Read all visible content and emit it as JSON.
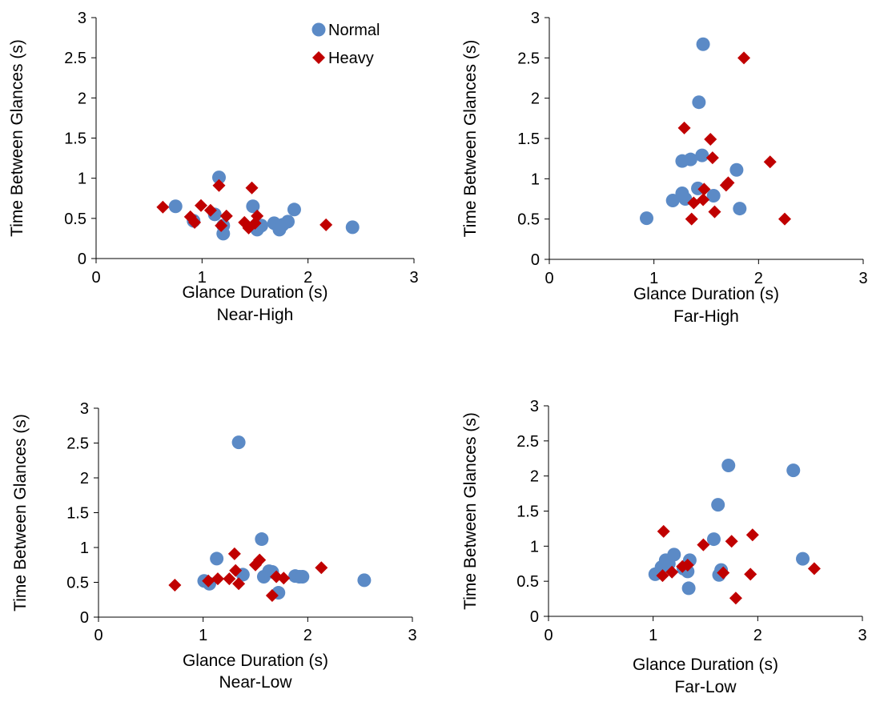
{
  "colors": {
    "normal": "#5b8ac6",
    "heavy": "#c00000",
    "axis": "#000000"
  },
  "chart_data": [
    {
      "type": "scatter",
      "xlabel": "Glance Duration (s)",
      "caption": "Near-High",
      "ylabel": "Time Between Glances (s)",
      "xlim": [
        0,
        3
      ],
      "ylim": [
        0,
        3
      ],
      "xticks": [
        "0",
        "1",
        "2",
        "3"
      ],
      "yticks": [
        "0",
        "0.5",
        "1",
        "1.5",
        "2",
        "2.5",
        "3"
      ],
      "legend": {
        "position": "top-right",
        "entries": [
          "Normal",
          "Heavy"
        ]
      },
      "series": [
        {
          "name": "Normal",
          "marker": "circle",
          "x": [
            0.75,
            0.92,
            1.12,
            1.16,
            1.2,
            1.2,
            1.48,
            1.52,
            1.56,
            1.68,
            1.73,
            1.76,
            1.81,
            1.87,
            2.42
          ],
          "y": [
            0.65,
            0.47,
            0.55,
            1.01,
            0.41,
            0.31,
            0.65,
            0.36,
            0.41,
            0.44,
            0.36,
            0.42,
            0.46,
            0.61,
            0.39
          ]
        },
        {
          "name": "Heavy",
          "marker": "diamond",
          "x": [
            0.63,
            0.89,
            0.93,
            0.99,
            1.08,
            1.16,
            1.18,
            1.23,
            1.4,
            1.44,
            1.47,
            1.5,
            1.52,
            2.17
          ],
          "y": [
            0.64,
            0.52,
            0.45,
            0.66,
            0.6,
            0.91,
            0.41,
            0.53,
            0.45,
            0.38,
            0.88,
            0.44,
            0.53,
            0.42
          ]
        }
      ]
    },
    {
      "type": "scatter",
      "xlabel": "Glance Duration (s)",
      "caption": "Far-High",
      "ylabel": "Time Between Glances (s)",
      "xlim": [
        0,
        3
      ],
      "ylim": [
        0,
        3
      ],
      "xticks": [
        "0",
        "1",
        "2",
        "3"
      ],
      "yticks": [
        "0",
        "0.5",
        "1",
        "1.5",
        "2",
        "2.5",
        "3"
      ],
      "series": [
        {
          "name": "Normal",
          "marker": "circle",
          "x": [
            0.93,
            1.18,
            1.27,
            1.27,
            1.3,
            1.35,
            1.42,
            1.43,
            1.46,
            1.47,
            1.57,
            1.79,
            1.82
          ],
          "y": [
            0.51,
            0.73,
            0.82,
            1.22,
            0.75,
            1.24,
            0.88,
            1.95,
            1.29,
            2.67,
            0.79,
            1.11,
            0.63
          ]
        },
        {
          "name": "Heavy",
          "marker": "diamond",
          "x": [
            1.29,
            1.36,
            1.38,
            1.47,
            1.48,
            1.54,
            1.56,
            1.58,
            1.69,
            1.71,
            1.86,
            2.11,
            2.25
          ],
          "y": [
            1.63,
            0.5,
            0.7,
            0.74,
            0.87,
            1.49,
            1.26,
            0.59,
            0.92,
            0.95,
            2.5,
            1.21,
            0.5
          ]
        }
      ]
    },
    {
      "type": "scatter",
      "xlabel": "Glance Duration (s)",
      "caption": "Near-Low",
      "ylabel": "Time Between Glances (s)",
      "xlim": [
        0,
        3
      ],
      "ylim": [
        0,
        3
      ],
      "xticks": [
        "0",
        "1",
        "2",
        "3"
      ],
      "yticks": [
        "0",
        "0.5",
        "1",
        "1.5",
        "2",
        "2.5",
        "3"
      ],
      "series": [
        {
          "name": "Normal",
          "marker": "circle",
          "x": [
            1.01,
            1.06,
            1.13,
            1.34,
            1.38,
            1.56,
            1.58,
            1.63,
            1.66,
            1.72,
            1.88,
            1.92,
            1.95,
            2.54
          ],
          "y": [
            0.52,
            0.48,
            0.84,
            2.51,
            0.61,
            1.12,
            0.58,
            0.66,
            0.65,
            0.35,
            0.59,
            0.58,
            0.58,
            0.53
          ]
        },
        {
          "name": "Heavy",
          "marker": "diamond",
          "x": [
            0.73,
            1.05,
            1.14,
            1.25,
            1.3,
            1.31,
            1.34,
            1.5,
            1.54,
            1.66,
            1.7,
            1.77,
            2.13
          ],
          "y": [
            0.46,
            0.52,
            0.55,
            0.55,
            0.91,
            0.67,
            0.48,
            0.75,
            0.82,
            0.31,
            0.58,
            0.56,
            0.71
          ]
        }
      ]
    },
    {
      "type": "scatter",
      "xlabel": "Glance Duration (s)",
      "caption": "Far-Low",
      "ylabel": "Time Between Glances (s)",
      "xlim": [
        0,
        3
      ],
      "ylim": [
        0,
        3
      ],
      "xticks": [
        "0",
        "1",
        "2",
        "3"
      ],
      "yticks": [
        "0",
        "0.5",
        "1",
        "1.5",
        "2",
        "2.5",
        "3"
      ],
      "series": [
        {
          "name": "Normal",
          "marker": "circle",
          "x": [
            1.02,
            1.08,
            1.12,
            1.15,
            1.2,
            1.29,
            1.33,
            1.34,
            1.35,
            1.58,
            1.62,
            1.63,
            1.65,
            1.72,
            2.34,
            2.43
          ],
          "y": [
            0.6,
            0.7,
            0.8,
            0.75,
            0.88,
            0.68,
            0.64,
            0.4,
            0.8,
            1.1,
            1.59,
            0.59,
            0.66,
            2.15,
            2.08,
            0.82
          ]
        },
        {
          "name": "Heavy",
          "marker": "diamond",
          "x": [
            1.09,
            1.1,
            1.18,
            1.28,
            1.33,
            1.48,
            1.67,
            1.75,
            1.79,
            1.93,
            1.95,
            2.54
          ],
          "y": [
            0.58,
            1.21,
            0.63,
            0.71,
            0.73,
            1.02,
            0.62,
            1.07,
            0.26,
            0.6,
            1.16,
            0.68
          ]
        }
      ]
    }
  ]
}
